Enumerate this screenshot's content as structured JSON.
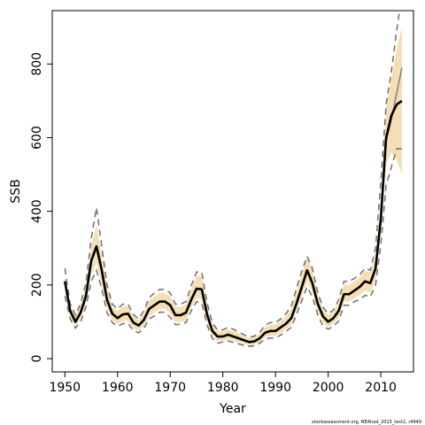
{
  "chart_data": {
    "type": "line",
    "xlabel": "Year",
    "ylabel": "SSB",
    "xlim": [
      1947.6,
      2016.2
    ],
    "ylim": [
      -36,
      945
    ],
    "x_ticks": [
      "1950",
      "1960",
      "1970",
      "1980",
      "1990",
      "2000",
      "2010"
    ],
    "y_ticks": [
      "0",
      "200",
      "400",
      "600",
      "800"
    ],
    "footnote": "stockassessment.org, NEAhad_2015_test2, r4949",
    "colors": {
      "band": "#f5deb3",
      "estimate": "#000000",
      "dashed_bounds": "#6e6e6e",
      "alt_estimate": "#808080"
    },
    "x": [
      1950,
      1951,
      1952,
      1953,
      1954,
      1955,
      1956,
      1957,
      1958,
      1959,
      1960,
      1961,
      1962,
      1963,
      1964,
      1965,
      1966,
      1967,
      1968,
      1969,
      1970,
      1971,
      1972,
      1973,
      1974,
      1975,
      1976,
      1977,
      1978,
      1979,
      1980,
      1981,
      1982,
      1983,
      1984,
      1985,
      1986,
      1987,
      1988,
      1989,
      1990,
      1991,
      1992,
      1993,
      1994,
      1995,
      1996,
      1997,
      1998,
      1999,
      2000,
      2001,
      2002,
      2003,
      2004,
      2005,
      2006,
      2007,
      2008,
      2009,
      2010,
      2011,
      2012,
      2013,
      2014
    ],
    "series": [
      {
        "role": "estimate",
        "values": [
          210,
          130,
          100,
          125,
          170,
          265,
          305,
          240,
          160,
          122,
          110,
          120,
          122,
          98,
          90,
          105,
          135,
          145,
          155,
          155,
          145,
          118,
          118,
          125,
          160,
          190,
          188,
          120,
          75,
          60,
          60,
          65,
          60,
          55,
          50,
          45,
          47,
          55,
          70,
          75,
          75,
          85,
          95,
          110,
          150,
          195,
          240,
          205,
          150,
          115,
          100,
          110,
          130,
          175,
          175,
          185,
          195,
          210,
          205,
          245,
          380,
          600,
          660,
          690,
          700
        ]
      },
      {
        "role": "lower",
        "values": [
          190,
          115,
          88,
          108,
          150,
          230,
          260,
          205,
          135,
          105,
          95,
          102,
          104,
          82,
          75,
          88,
          115,
          125,
          135,
          135,
          122,
          98,
          100,
          105,
          138,
          165,
          160,
          100,
          62,
          48,
          48,
          52,
          48,
          44,
          40,
          36,
          38,
          45,
          58,
          62,
          62,
          70,
          80,
          92,
          130,
          170,
          210,
          180,
          130,
          98,
          85,
          95,
          110,
          155,
          155,
          165,
          172,
          185,
          180,
          215,
          340,
          530,
          560,
          540,
          500
        ]
      },
      {
        "role": "upper",
        "values": [
          225,
          145,
          115,
          145,
          195,
          305,
          360,
          285,
          190,
          142,
          128,
          142,
          142,
          115,
          105,
          125,
          158,
          168,
          178,
          178,
          170,
          140,
          140,
          148,
          188,
          225,
          225,
          145,
          92,
          75,
          73,
          80,
          75,
          68,
          62,
          55,
          58,
          68,
          85,
          92,
          92,
          102,
          115,
          135,
          182,
          230,
          275,
          240,
          175,
          135,
          118,
          128,
          152,
          200,
          200,
          210,
          222,
          238,
          235,
          280,
          430,
          680,
          760,
          840,
          900
        ]
      },
      {
        "role": "dashed-upper",
        "values": [
          245,
          150,
          118,
          150,
          205,
          325,
          410,
          305,
          200,
          148,
          135,
          148,
          148,
          120,
          108,
          130,
          165,
          178,
          188,
          188,
          178,
          148,
          148,
          155,
          198,
          235,
          235,
          152,
          96,
          78,
          78,
          85,
          80,
          72,
          65,
          58,
          61,
          72,
          90,
          98,
          98,
          108,
          122,
          142,
          192,
          238,
          278,
          245,
          180,
          140,
          122,
          132,
          160,
          210,
          210,
          218,
          228,
          245,
          240,
          300,
          480,
          690,
          780,
          890,
          990
        ]
      },
      {
        "role": "dashed-lower",
        "values": [
          170,
          108,
          83,
          100,
          140,
          210,
          240,
          190,
          125,
          98,
          88,
          95,
          96,
          76,
          70,
          82,
          108,
          116,
          126,
          126,
          112,
          92,
          94,
          98,
          130,
          155,
          150,
          92,
          55,
          42,
          45,
          48,
          44,
          40,
          36,
          33,
          35,
          42,
          53,
          56,
          56,
          64,
          74,
          85,
          120,
          158,
          195,
          168,
          120,
          88,
          80,
          88,
          102,
          145,
          145,
          155,
          160,
          172,
          168,
          200,
          310,
          470,
          520,
          570,
          570
        ]
      },
      {
        "role": "alt-estimate",
        "values": [
          null,
          null,
          null,
          null,
          null,
          null,
          null,
          null,
          null,
          null,
          null,
          null,
          null,
          null,
          null,
          null,
          null,
          null,
          null,
          null,
          null,
          null,
          null,
          null,
          null,
          null,
          null,
          null,
          null,
          null,
          null,
          null,
          null,
          null,
          null,
          null,
          null,
          null,
          null,
          null,
          null,
          null,
          null,
          null,
          null,
          null,
          null,
          null,
          null,
          null,
          null,
          null,
          null,
          null,
          null,
          null,
          null,
          null,
          null,
          null,
          400,
          590,
          650,
          720,
          790
        ]
      }
    ],
    "grid": false,
    "legend": "none"
  }
}
